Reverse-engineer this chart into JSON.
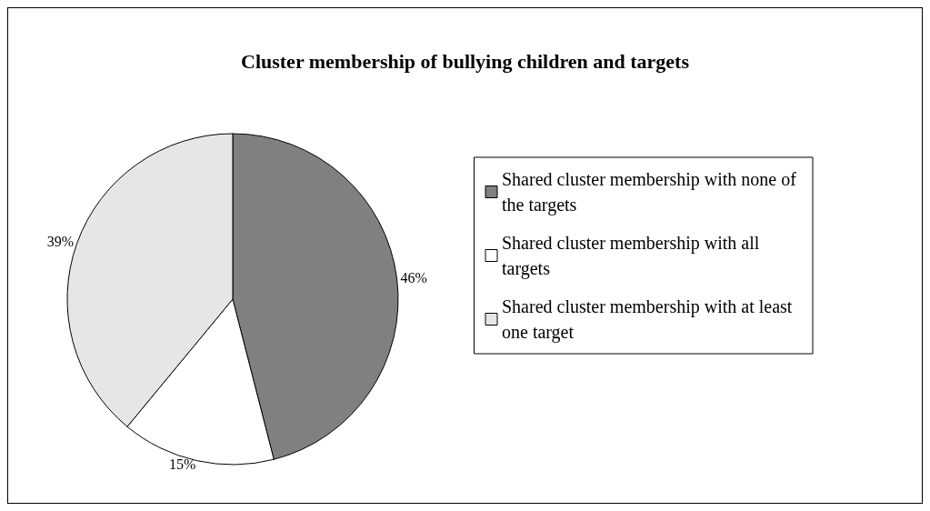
{
  "chart_data": {
    "type": "pie",
    "title": "Cluster membership of bullying children and targets",
    "categories": [
      "Shared cluster membership with none of the targets",
      "Shared cluster membership with all targets",
      "Shared cluster membership with at least one target"
    ],
    "values": [
      46,
      15,
      39
    ],
    "colors": [
      "#808080",
      "#ffffff",
      "#e6e6e6"
    ],
    "value_labels": [
      "46%",
      "15%",
      "39%"
    ],
    "legend": "right"
  }
}
